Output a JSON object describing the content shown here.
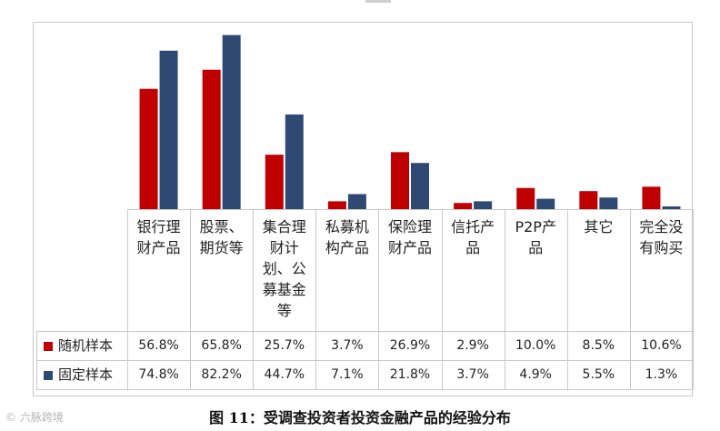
{
  "chart_data": {
    "type": "bar",
    "categories": [
      "银行理\n财产品",
      "股票、\n期货等",
      "集合理\n财计\n划、公\n募基金\n等",
      "私募机\n构产品",
      "保险理\n财产品",
      "信托产\n品",
      "P2P产\n品",
      "其它",
      "完全没\n有购买"
    ],
    "series": [
      {
        "name": "随机样本",
        "values": [
          56.8,
          65.8,
          25.7,
          3.7,
          26.9,
          2.9,
          10.0,
          8.5,
          10.6
        ],
        "labels": [
          "56.8%",
          "65.8%",
          "25.7%",
          "3.7%",
          "26.9%",
          "2.9%",
          "10.0%",
          "8.5%",
          "10.6%"
        ],
        "color": "#c00000"
      },
      {
        "name": "固定样本",
        "values": [
          74.8,
          82.2,
          44.7,
          7.1,
          21.8,
          3.7,
          4.9,
          5.5,
          1.3
        ],
        "labels": [
          "74.8%",
          "82.2%",
          "44.7%",
          "7.1%",
          "21.8%",
          "3.7%",
          "4.9%",
          "5.5%",
          "1.3%"
        ],
        "color": "#2f4a72"
      }
    ],
    "ylim": [
      0,
      85
    ],
    "grid": false,
    "legend": "data-table"
  },
  "caption": "图 11：受调查投资者投资金融产品的经验分布",
  "watermark": "© 六脉跨境"
}
